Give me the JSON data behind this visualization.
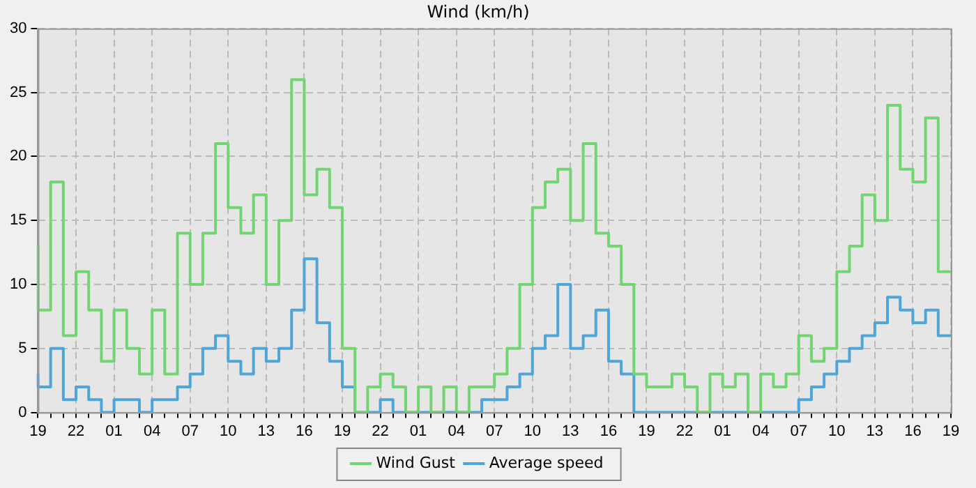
{
  "chart_data": {
    "type": "step",
    "title": "Wind (km/h)",
    "categories": [
      "19",
      null,
      null,
      "22",
      null,
      null,
      "01",
      null,
      null,
      "04",
      null,
      null,
      "07",
      null,
      null,
      "10",
      null,
      null,
      "13",
      null,
      null,
      "16",
      null,
      null,
      "19",
      null,
      null,
      "22",
      null,
      null,
      "01",
      null,
      null,
      "04",
      null,
      null,
      "07",
      null,
      null,
      "10",
      null,
      null,
      "13",
      null,
      null,
      "16",
      null,
      null,
      "19",
      null,
      null,
      "22",
      null,
      null,
      "01",
      null,
      null,
      "04",
      null,
      null,
      "07",
      null,
      null,
      "10",
      null,
      null,
      "13",
      null,
      null,
      "16",
      null,
      null,
      "19"
    ],
    "series": [
      {
        "name": "Wind Gust",
        "color": "#72d572",
        "values": [
          13,
          8,
          18,
          6,
          11,
          8,
          4,
          8,
          5,
          3,
          8,
          3,
          14,
          10,
          14,
          21,
          16,
          14,
          17,
          10,
          15,
          26,
          17,
          19,
          16,
          5,
          0,
          2,
          3,
          2,
          0,
          2,
          0,
          2,
          0,
          2,
          2,
          3,
          5,
          10,
          16,
          18,
          19,
          15,
          21,
          14,
          13,
          10,
          3,
          2,
          2,
          3,
          2,
          0,
          3,
          2,
          3,
          0,
          3,
          2,
          3,
          6,
          4,
          5,
          11,
          13,
          17,
          15,
          24,
          19,
          18,
          23,
          11
        ]
      },
      {
        "name": "Average speed",
        "color": "#4ea6d8",
        "values": [
          3,
          2,
          5,
          1,
          2,
          1,
          0,
          1,
          1,
          0,
          1,
          1,
          2,
          3,
          5,
          6,
          4,
          3,
          5,
          4,
          5,
          8,
          12,
          7,
          4,
          2,
          0,
          0,
          1,
          0,
          0,
          0,
          0,
          0,
          0,
          0,
          1,
          1,
          2,
          3,
          5,
          6,
          10,
          5,
          6,
          8,
          4,
          3,
          0,
          0,
          0,
          0,
          0,
          0,
          0,
          0,
          0,
          0,
          0,
          0,
          0,
          1,
          2,
          3,
          4,
          5,
          6,
          7,
          9,
          8,
          7,
          8,
          6
        ]
      }
    ],
    "ylim": [
      0,
      30
    ],
    "yticks": [
      0,
      5,
      10,
      15,
      20,
      25,
      30
    ],
    "grid": true,
    "legend": "bottom",
    "marker": "none",
    "line_style": "solid"
  }
}
